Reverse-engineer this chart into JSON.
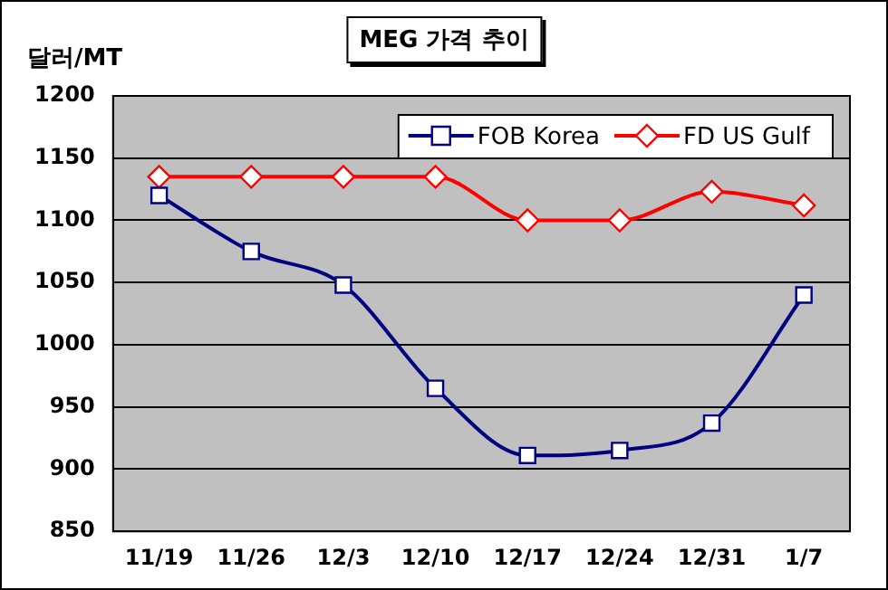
{
  "chart_data": {
    "type": "line",
    "title": "MEG 가격 추이",
    "ylabel": "달러/MT",
    "categories": [
      "11/19",
      "11/26",
      "12/3",
      "12/10",
      "12/17",
      "12/24",
      "12/31",
      "1/7"
    ],
    "series": [
      {
        "name": "FOB Korea",
        "color": "#000080",
        "marker": "square",
        "values": [
          1120,
          1075,
          1048,
          965,
          911,
          915,
          937,
          1040
        ]
      },
      {
        "name": "FD US Gulf",
        "color": "#ff0000",
        "marker": "diamond",
        "values": [
          1135,
          1135,
          1135,
          1135,
          1100,
          1100,
          1123,
          1112
        ]
      }
    ],
    "ylim": [
      850,
      1200
    ],
    "yticks": [
      850,
      900,
      950,
      1000,
      1050,
      1100,
      1150,
      1200
    ],
    "grid": "y",
    "legend": "top right"
  }
}
